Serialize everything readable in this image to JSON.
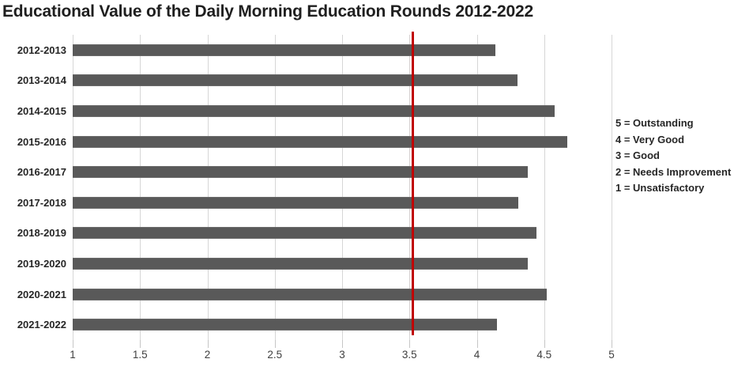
{
  "title": "Educational Value of the Daily Morning Education Rounds 2012-2022",
  "chart_data": {
    "type": "bar",
    "orientation": "horizontal",
    "title": "Educational Value of the Daily Morning Education Rounds 2012-2022",
    "categories": [
      "2012-2013",
      "2013-2014",
      "2014-2015",
      "2015-2016",
      "2016-2017",
      "2017-2018",
      "2018-2019",
      "2019-2020",
      "2020-2021",
      "2021-2022"
    ],
    "values": [
      4.14,
      4.3,
      4.58,
      4.67,
      4.38,
      4.31,
      4.44,
      4.38,
      4.52,
      4.15
    ],
    "xlim": [
      1,
      5
    ],
    "x_ticks": [
      1,
      1.5,
      2,
      2.5,
      3,
      3.5,
      4,
      4.5,
      5
    ],
    "x_tick_labels": [
      "1",
      "1.5",
      "2",
      "2.5",
      "3",
      "3.5",
      "4",
      "4.5",
      "5"
    ],
    "grid": true,
    "legend_position": "right",
    "bar_color": "#595959",
    "gridline_color": "#d6d6d6",
    "reference_line": {
      "value": 3.52,
      "color": "#c00000"
    }
  },
  "legend": {
    "items": [
      "5 = Outstanding",
      "4 = Very Good",
      "3 = Good",
      "2 = Needs Improvement",
      "1 = Unsatisfactory"
    ]
  }
}
